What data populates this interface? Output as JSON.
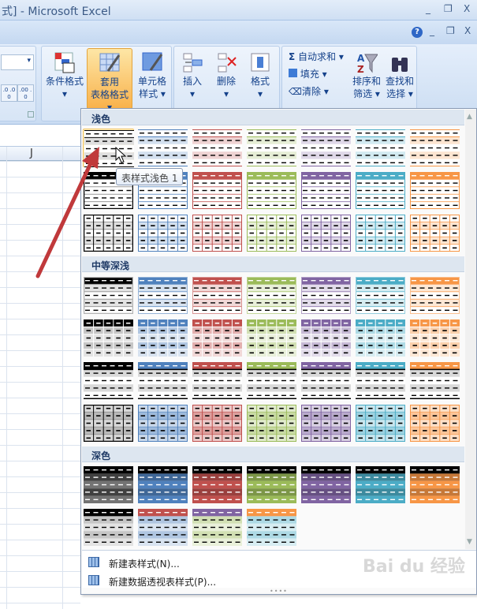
{
  "window": {
    "title": "式] - Microsoft Excel",
    "min": "_",
    "restore": "❐",
    "close": "X"
  },
  "ribbon": {
    "help": "?",
    "min": "_",
    "restore": "❐",
    "close": "X",
    "buttons": {
      "conditional": "条件格式",
      "format_table_1": "套用",
      "format_table_2": "表格格式",
      "cell_styles_1": "单元格",
      "cell_styles_2": "样式",
      "insert": "插入",
      "delete": "删除",
      "format": "格式",
      "autosum": "自动求和",
      "fill": "填充",
      "clear": "清除",
      "sort_1": "排序和",
      "sort_2": "筛选",
      "find_1": "查找和",
      "find_2": "选择",
      "decimal_inc": ".0 .00",
      "decimal_dec": ".00 .0"
    },
    "dropdown_arrow": "▾"
  },
  "sheet": {
    "column_header": "J"
  },
  "gallery": {
    "sections": {
      "light": "浅色",
      "medium": "中等深浅",
      "dark": "深色"
    },
    "tooltip": "表样式浅色 1",
    "selected": "浅色-1",
    "colors": [
      "#000000",
      "#4f81bd",
      "#c0504d",
      "#9bbb59",
      "#8064a2",
      "#4bacc6",
      "#f79646"
    ],
    "light_rows": [
      "L1",
      "L2",
      "L3"
    ],
    "medium_rows": [
      "M1",
      "M2",
      "M3",
      "M4"
    ],
    "dark_rows": [
      "D1",
      "D2"
    ],
    "dark_row2_pairs": [
      [
        "#000000",
        "#000000"
      ],
      [
        "#c0504d",
        "#4f81bd"
      ],
      [
        "#8064a2",
        "#9bbb59"
      ],
      [
        "#f79646",
        "#4bacc6"
      ]
    ],
    "menu": {
      "new_table_style": "新建表样式(N)...",
      "new_pivot_style": "新建数据透视表样式(P)..."
    }
  },
  "watermark": "Bai du 经验"
}
